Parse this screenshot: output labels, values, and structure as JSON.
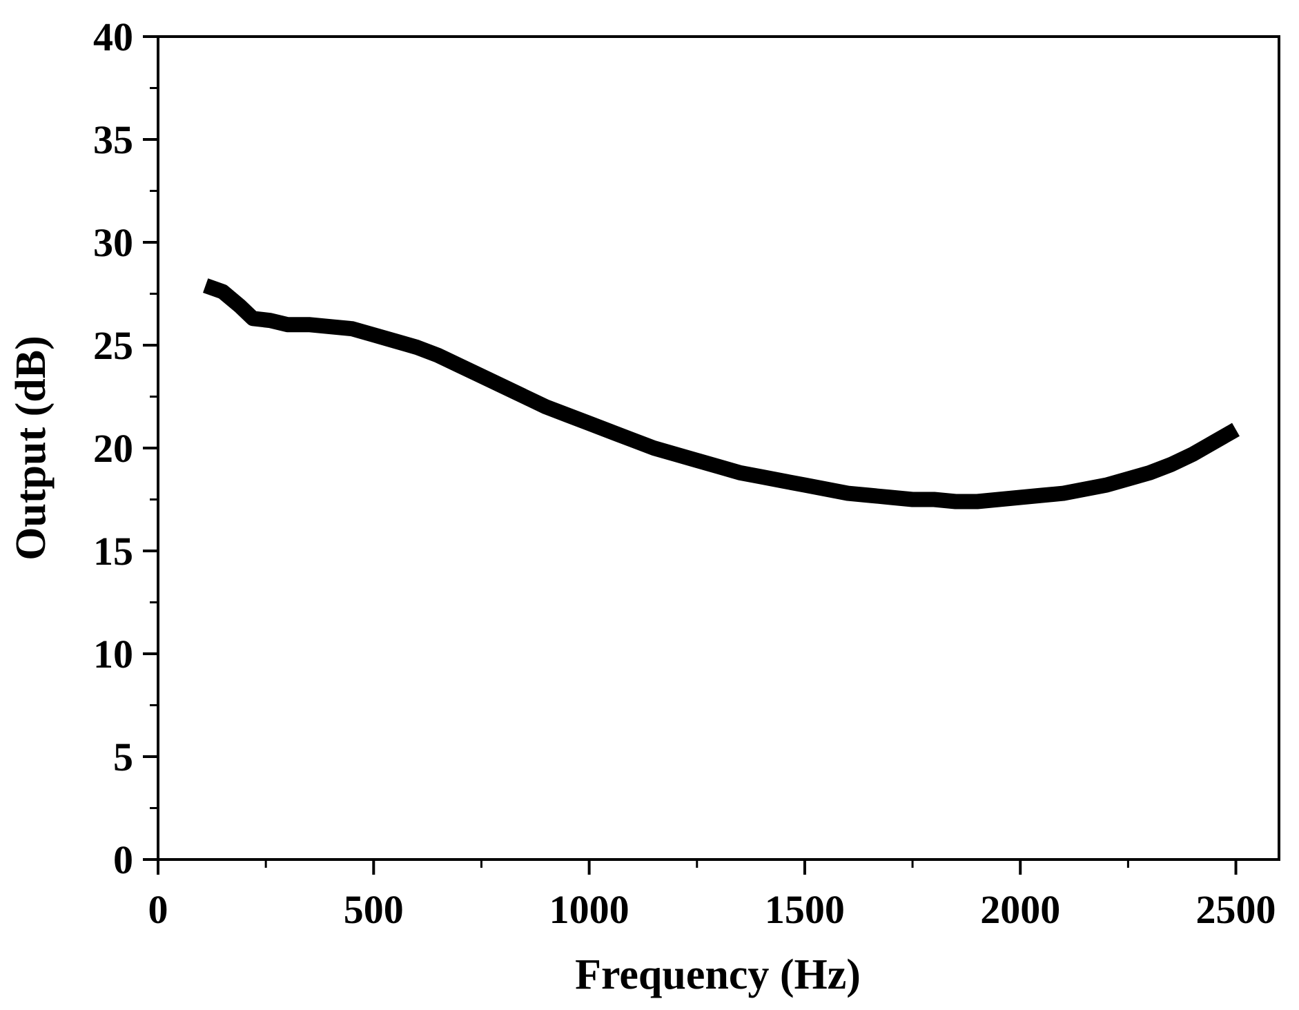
{
  "chart_data": {
    "type": "line",
    "title": "",
    "xlabel": "Frequency (Hz)",
    "ylabel": "Output (dB)",
    "xlim": [
      0,
      2600
    ],
    "ylim": [
      0,
      40
    ],
    "x_ticks": [
      0,
      500,
      1000,
      1500,
      2000,
      2500
    ],
    "x_tick_labels": [
      "0",
      "500",
      "1000",
      "1500",
      "2000",
      "2500"
    ],
    "y_ticks": [
      0,
      5,
      10,
      15,
      20,
      25,
      30,
      35,
      40
    ],
    "y_tick_labels": [
      "0",
      "5",
      "10",
      "15",
      "20",
      "25",
      "30",
      "35",
      "40"
    ],
    "x_minor_step": 250,
    "y_minor_step": 2.5,
    "grid": false,
    "line_color": "#000000",
    "series": [
      {
        "name": "Output",
        "x": [
          110,
          150,
          190,
          220,
          260,
          300,
          350,
          400,
          450,
          500,
          550,
          600,
          650,
          700,
          750,
          800,
          850,
          900,
          950,
          1000,
          1050,
          1100,
          1150,
          1200,
          1250,
          1300,
          1350,
          1400,
          1450,
          1500,
          1550,
          1600,
          1650,
          1700,
          1750,
          1800,
          1850,
          1900,
          1950,
          2000,
          2050,
          2100,
          2150,
          2200,
          2250,
          2300,
          2350,
          2400,
          2450,
          2500
        ],
        "y": [
          27.9,
          27.6,
          26.9,
          26.3,
          26.2,
          26.0,
          26.0,
          25.9,
          25.8,
          25.5,
          25.2,
          24.9,
          24.5,
          24.0,
          23.5,
          23.0,
          22.5,
          22.0,
          21.6,
          21.2,
          20.8,
          20.4,
          20.0,
          19.7,
          19.4,
          19.1,
          18.8,
          18.6,
          18.4,
          18.2,
          18.0,
          17.8,
          17.7,
          17.6,
          17.5,
          17.5,
          17.4,
          17.4,
          17.5,
          17.6,
          17.7,
          17.8,
          18.0,
          18.2,
          18.5,
          18.8,
          19.2,
          19.7,
          20.3,
          20.9
        ]
      }
    ]
  }
}
